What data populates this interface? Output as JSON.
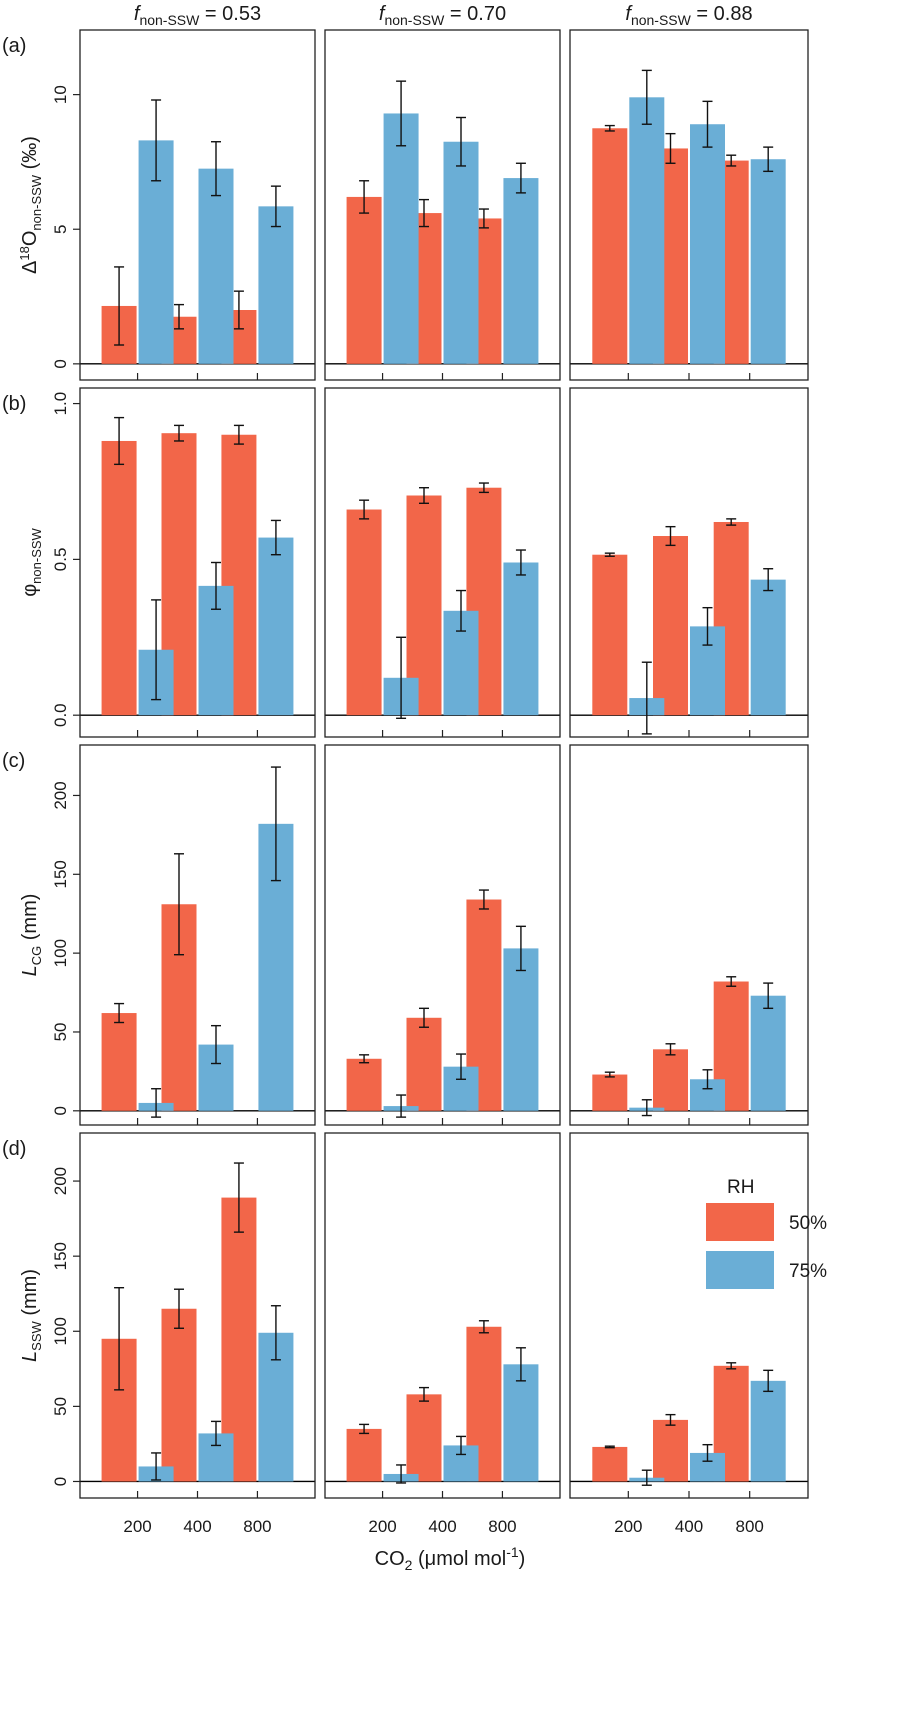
{
  "chart_data": {
    "type": "bar",
    "x_title": {
      "base": "CO",
      "sub": "2",
      "rest": " (μmol mol",
      "sup": "-1",
      "end": ")"
    },
    "categories": [
      "200",
      "400",
      "800"
    ],
    "columns": [
      {
        "prefix": "f",
        "sub": "non-SSW",
        "rest": " = 0.53"
      },
      {
        "prefix": "f",
        "sub": "non-SSW",
        "rest": " = 0.70"
      },
      {
        "prefix": "f",
        "sub": "non-SSW",
        "rest": " = 0.88"
      }
    ],
    "colors": {
      "50%": "#f26649",
      "75%": "#6aaed6"
    },
    "legend": {
      "title": "RH",
      "entries": [
        "50%",
        "75%"
      ],
      "position": "top-right of panel (d), f = 0.88"
    },
    "rows": [
      {
        "letter": "(a)",
        "ylabel": {
          "main": "Δ",
          "sup": "18",
          "after": "O",
          "sub": "non-SSW",
          "end": " (‰)"
        },
        "ylim": [
          -0.6,
          12.4
        ],
        "yticks": [
          0,
          5,
          10
        ],
        "ytick_labels": [
          "0",
          "5",
          "10"
        ],
        "panels": [
          {
            "series": [
              {
                "name": "50%",
                "values": [
                  2.15,
                  1.75,
                  2.0
                ],
                "err": [
                  1.45,
                  0.45,
                  0.7
                ]
              },
              {
                "name": "75%",
                "values": [
                  8.3,
                  7.25,
                  5.85
                ],
                "err": [
                  1.5,
                  1.0,
                  0.75
                ]
              }
            ]
          },
          {
            "series": [
              {
                "name": "50%",
                "values": [
                  6.2,
                  5.6,
                  5.4
                ],
                "err": [
                  0.6,
                  0.5,
                  0.35
                ]
              },
              {
                "name": "75%",
                "values": [
                  9.3,
                  8.25,
                  6.9
                ],
                "err": [
                  1.2,
                  0.9,
                  0.55
                ]
              }
            ]
          },
          {
            "series": [
              {
                "name": "50%",
                "values": [
                  8.75,
                  8.0,
                  7.55
                ],
                "err": [
                  0.1,
                  0.55,
                  0.2
                ]
              },
              {
                "name": "75%",
                "values": [
                  9.9,
                  8.9,
                  7.6
                ],
                "err": [
                  1.0,
                  0.85,
                  0.45
                ]
              }
            ]
          }
        ]
      },
      {
        "letter": "(b)",
        "ylabel": {
          "main": "φ",
          "sup": "",
          "after": "",
          "sub": "non-SSW",
          "end": ""
        },
        "ylim": [
          -0.07,
          1.05
        ],
        "yticks": [
          0,
          0.5,
          1.0
        ],
        "ytick_labels": [
          "0.0",
          "0.5",
          "1.0"
        ],
        "panels": [
          {
            "series": [
              {
                "name": "50%",
                "values": [
                  0.88,
                  0.905,
                  0.9
                ],
                "err": [
                  0.075,
                  0.025,
                  0.03
                ]
              },
              {
                "name": "75%",
                "values": [
                  0.21,
                  0.415,
                  0.57
                ],
                "err": [
                  0.16,
                  0.075,
                  0.055
                ]
              }
            ]
          },
          {
            "series": [
              {
                "name": "50%",
                "values": [
                  0.66,
                  0.705,
                  0.73
                ],
                "err": [
                  0.03,
                  0.025,
                  0.015
                ]
              },
              {
                "name": "75%",
                "values": [
                  0.12,
                  0.335,
                  0.49
                ],
                "err": [
                  0.13,
                  0.065,
                  0.04
                ]
              }
            ]
          },
          {
            "series": [
              {
                "name": "50%",
                "values": [
                  0.515,
                  0.575,
                  0.62
                ],
                "err": [
                  0.005,
                  0.03,
                  0.01
                ]
              },
              {
                "name": "75%",
                "values": [
                  0.055,
                  0.285,
                  0.435
                ],
                "err": [
                  0.115,
                  0.06,
                  0.035
                ]
              }
            ]
          }
        ]
      },
      {
        "letter": "(c)",
        "ylabel": {
          "main": "L",
          "sup": "",
          "after": "",
          "sub": "CG",
          "end": " (mm)"
        },
        "ylim": [
          -9,
          232
        ],
        "yticks": [
          0,
          50,
          100,
          150,
          200
        ],
        "ytick_labels": [
          "0",
          "50",
          "100",
          "150",
          "200"
        ],
        "panels": [
          {
            "series": [
              {
                "name": "50%",
                "values": [
                  62,
                  131,
                  0
                ],
                "err": [
                  6,
                  32,
                  0
                ]
              },
              {
                "name": "75%",
                "values": [
                  5,
                  42,
                  182
                ],
                "err": [
                  9,
                  12,
                  36
                ]
              }
            ]
          },
          {
            "series": [
              {
                "name": "50%",
                "values": [
                  33,
                  59,
                  134
                ],
                "err": [
                  2.5,
                  6,
                  6
                ]
              },
              {
                "name": "75%",
                "values": [
                  3,
                  28,
                  103
                ],
                "err": [
                  7,
                  8,
                  14
                ]
              }
            ]
          },
          {
            "series": [
              {
                "name": "50%",
                "values": [
                  23,
                  39,
                  82
                ],
                "err": [
                  1.5,
                  3.5,
                  3
                ]
              },
              {
                "name": "75%",
                "values": [
                  2,
                  20,
                  73
                ],
                "err": [
                  5,
                  6,
                  8
                ]
              }
            ]
          }
        ]
      },
      {
        "letter": "(d)",
        "ylabel": {
          "main": "L",
          "sup": "",
          "after": "",
          "sub": "SSW",
          "end": " (mm)"
        },
        "ylim": [
          -11,
          232
        ],
        "yticks": [
          0,
          50,
          100,
          150,
          200
        ],
        "ytick_labels": [
          "0",
          "50",
          "100",
          "150",
          "200"
        ],
        "panels": [
          {
            "series": [
              {
                "name": "50%",
                "values": [
                  95,
                  115,
                  189
                ],
                "err": [
                  34,
                  13,
                  23
                ]
              },
              {
                "name": "75%",
                "values": [
                  10,
                  32,
                  99
                ],
                "err": [
                  9,
                  8,
                  18
                ]
              }
            ]
          },
          {
            "series": [
              {
                "name": "50%",
                "values": [
                  35,
                  58,
                  103
                ],
                "err": [
                  3,
                  4.5,
                  4
                ]
              },
              {
                "name": "75%",
                "values": [
                  5,
                  24,
                  78
                ],
                "err": [
                  6,
                  6,
                  11
                ]
              }
            ]
          },
          {
            "series": [
              {
                "name": "50%",
                "values": [
                  23,
                  41,
                  77
                ],
                "err": [
                  0.5,
                  3.5,
                  2
                ]
              },
              {
                "name": "75%",
                "values": [
                  2.5,
                  19,
                  67
                ],
                "err": [
                  5,
                  5.5,
                  7
                ]
              }
            ]
          }
        ]
      }
    ]
  }
}
